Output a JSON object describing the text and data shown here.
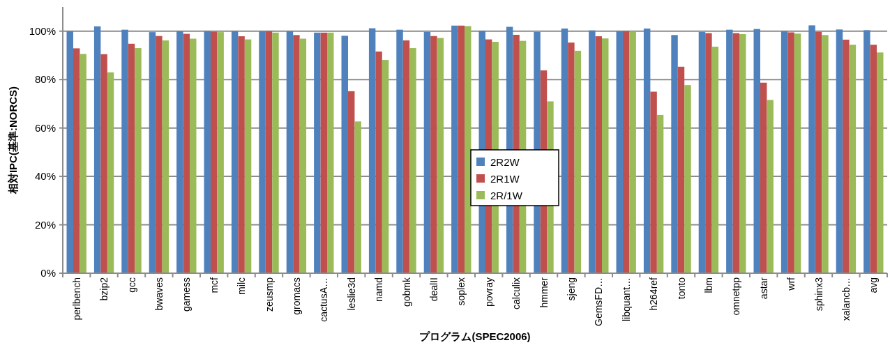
{
  "chart_data": {
    "type": "bar",
    "xlabel": "プログラム(SPEC2006)",
    "ylabel": "相対IPC(基準:NORCS)",
    "categories": [
      "perlbench",
      "bzip2",
      "gcc",
      "bwaves",
      "gamess",
      "mcf",
      "milc",
      "zeusmp",
      "gromacs",
      "cactusA…",
      "leslie3d",
      "namd",
      "gobmk",
      "dealII",
      "soplex",
      "povray",
      "calculix",
      "hmmer",
      "sjeng",
      "GemsFD…",
      "libquant…",
      "h264ref",
      "tonto",
      "lbm",
      "omnetpp",
      "astar",
      "wrf",
      "sphinx3",
      "xalancb…",
      "avg"
    ],
    "series": [
      {
        "name": "2R2W",
        "color": "#4f81bd",
        "values": [
          100,
          102,
          100.6,
          99.6,
          100,
          100,
          100,
          100,
          100,
          99.4,
          98.1,
          101.2,
          100.6,
          99.7,
          102.3,
          100.2,
          101.8,
          99.7,
          101.1,
          100.3,
          100,
          101.1,
          98.4,
          99.7,
          100.6,
          100.9,
          100,
          102.4,
          100.7,
          100.4
        ]
      },
      {
        "name": "2R1W",
        "color": "#c0504d",
        "values": [
          92.9,
          90.5,
          94.8,
          98,
          98.9,
          99.8,
          97.9,
          100,
          98.4,
          99.4,
          75.2,
          91.6,
          96.2,
          98,
          102.3,
          96.6,
          98.5,
          83.8,
          95.3,
          97.9,
          100,
          75,
          85.3,
          99.2,
          99.2,
          78.7,
          99.5,
          99.7,
          96.5,
          94.4
        ]
      },
      {
        "name": "2R/1W",
        "color": "#9bbb59",
        "values": [
          90.6,
          83,
          93,
          96.2,
          96.9,
          99.6,
          96.6,
          99.4,
          96.9,
          99.4,
          62.7,
          88.1,
          93,
          97.2,
          102.1,
          95.6,
          96,
          71,
          91.9,
          97,
          100,
          65.4,
          77.7,
          93.6,
          98.8,
          71.6,
          99,
          98.4,
          94.4,
          91.2
        ]
      }
    ],
    "ylim": [
      0,
      110
    ],
    "yticks": [
      {
        "value": 0,
        "label": "0%"
      },
      {
        "value": 20,
        "label": "20%"
      },
      {
        "value": 40,
        "label": "40%"
      },
      {
        "value": 60,
        "label": "60%"
      },
      {
        "value": 80,
        "label": "80%"
      },
      {
        "value": 100,
        "label": "100%"
      }
    ],
    "grid": "y",
    "legend": "center"
  }
}
